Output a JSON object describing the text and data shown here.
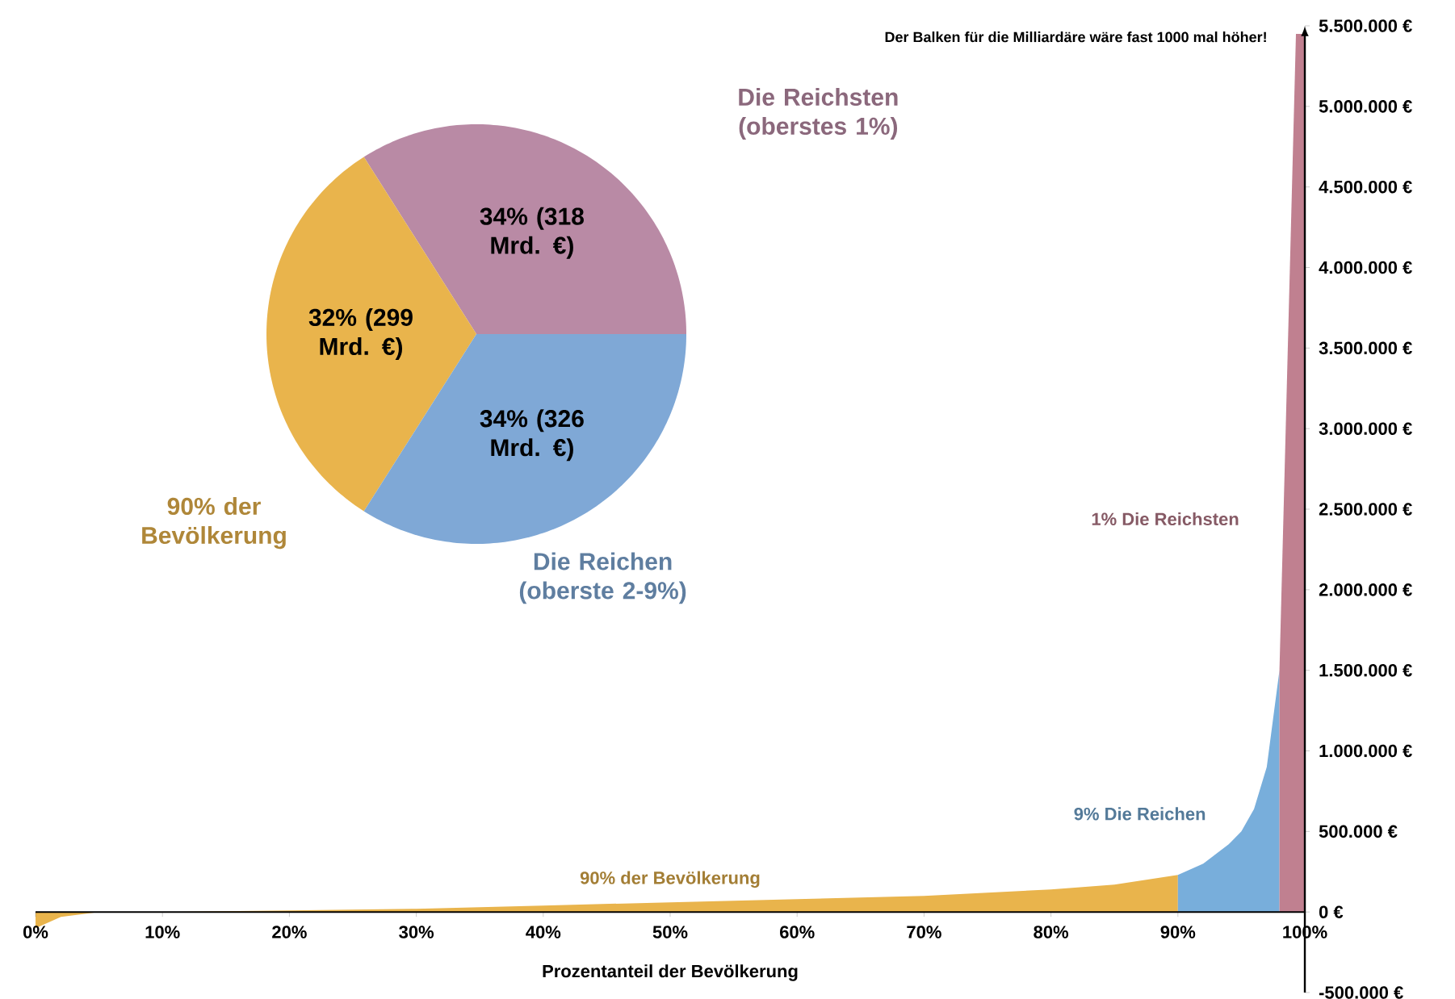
{
  "chart_data": [
    {
      "type": "pie",
      "categories": [
        "Die Reichsten (oberstes 1%)",
        "90% der Bevölkerung",
        "Die Reichen (oberste 2-9%)"
      ],
      "values": [
        34,
        32,
        34
      ],
      "value_labels": [
        "34% (318 Mrd. €)",
        "32% (299 Mrd. €)",
        "34% (326 Mrd. €)"
      ],
      "colors": [
        "#b98aa5",
        "#e9b44c",
        "#7fa8d6"
      ]
    },
    {
      "type": "area",
      "xlabel": "Prozentanteil der Bevölkerung",
      "annotations": [
        "Der Balken für die Milliardäre wäre fast 1000 mal höher!"
      ],
      "xlim": [
        0,
        100
      ],
      "ylim": [
        -500000,
        5500000
      ],
      "xticks": [
        {
          "value": 0,
          "label": "0%"
        },
        {
          "value": 10,
          "label": "10%"
        },
        {
          "value": 20,
          "label": "20%"
        },
        {
          "value": 30,
          "label": "30%"
        },
        {
          "value": 40,
          "label": "40%"
        },
        {
          "value": 50,
          "label": "50%"
        },
        {
          "value": 60,
          "label": "60%"
        },
        {
          "value": 70,
          "label": "70%"
        },
        {
          "value": 80,
          "label": "80%"
        },
        {
          "value": 90,
          "label": "90%"
        },
        {
          "value": 100,
          "label": "100%"
        }
      ],
      "yticks": [
        {
          "value": -500000,
          "label": "-500.000 €"
        },
        {
          "value": 0,
          "label": "0 €"
        },
        {
          "value": 500000,
          "label": "500.000 €"
        },
        {
          "value": 1000000,
          "label": "1.000.000 €"
        },
        {
          "value": 1500000,
          "label": "1.500.000 €"
        },
        {
          "value": 2000000,
          "label": "2.000.000 €"
        },
        {
          "value": 2500000,
          "label": "2.500.000 €"
        },
        {
          "value": 3000000,
          "label": "3.000.000 €"
        },
        {
          "value": 3500000,
          "label": "3.500.000 €"
        },
        {
          "value": 4000000,
          "label": "4.000.000 €"
        },
        {
          "value": 4500000,
          "label": "4.500.000 €"
        },
        {
          "value": 5000000,
          "label": "5.000.000 €"
        },
        {
          "value": 5500000,
          "label": "5.500.000 €"
        }
      ],
      "series": [
        {
          "name": "90% der Bevölkerung",
          "color": "#e9b44c",
          "x": [
            0,
            2,
            5,
            10,
            20,
            30,
            40,
            50,
            60,
            70,
            80,
            85,
            90
          ],
          "values": [
            -100000,
            -30000,
            0,
            0,
            10000,
            20000,
            40000,
            60000,
            80000,
            100000,
            140000,
            170000,
            230000
          ]
        },
        {
          "name": "9% Die Reichen",
          "color": "#78aedb",
          "x": [
            90,
            92,
            94,
            95,
            96,
            97,
            98
          ],
          "values": [
            230000,
            300000,
            420000,
            500000,
            640000,
            900000,
            1500000
          ]
        },
        {
          "name": "1% Die Reichsten",
          "color": "#c08090",
          "x": [
            98,
            99.3,
            100
          ],
          "values": [
            1500000,
            5450000,
            5450000
          ]
        }
      ]
    }
  ]
}
